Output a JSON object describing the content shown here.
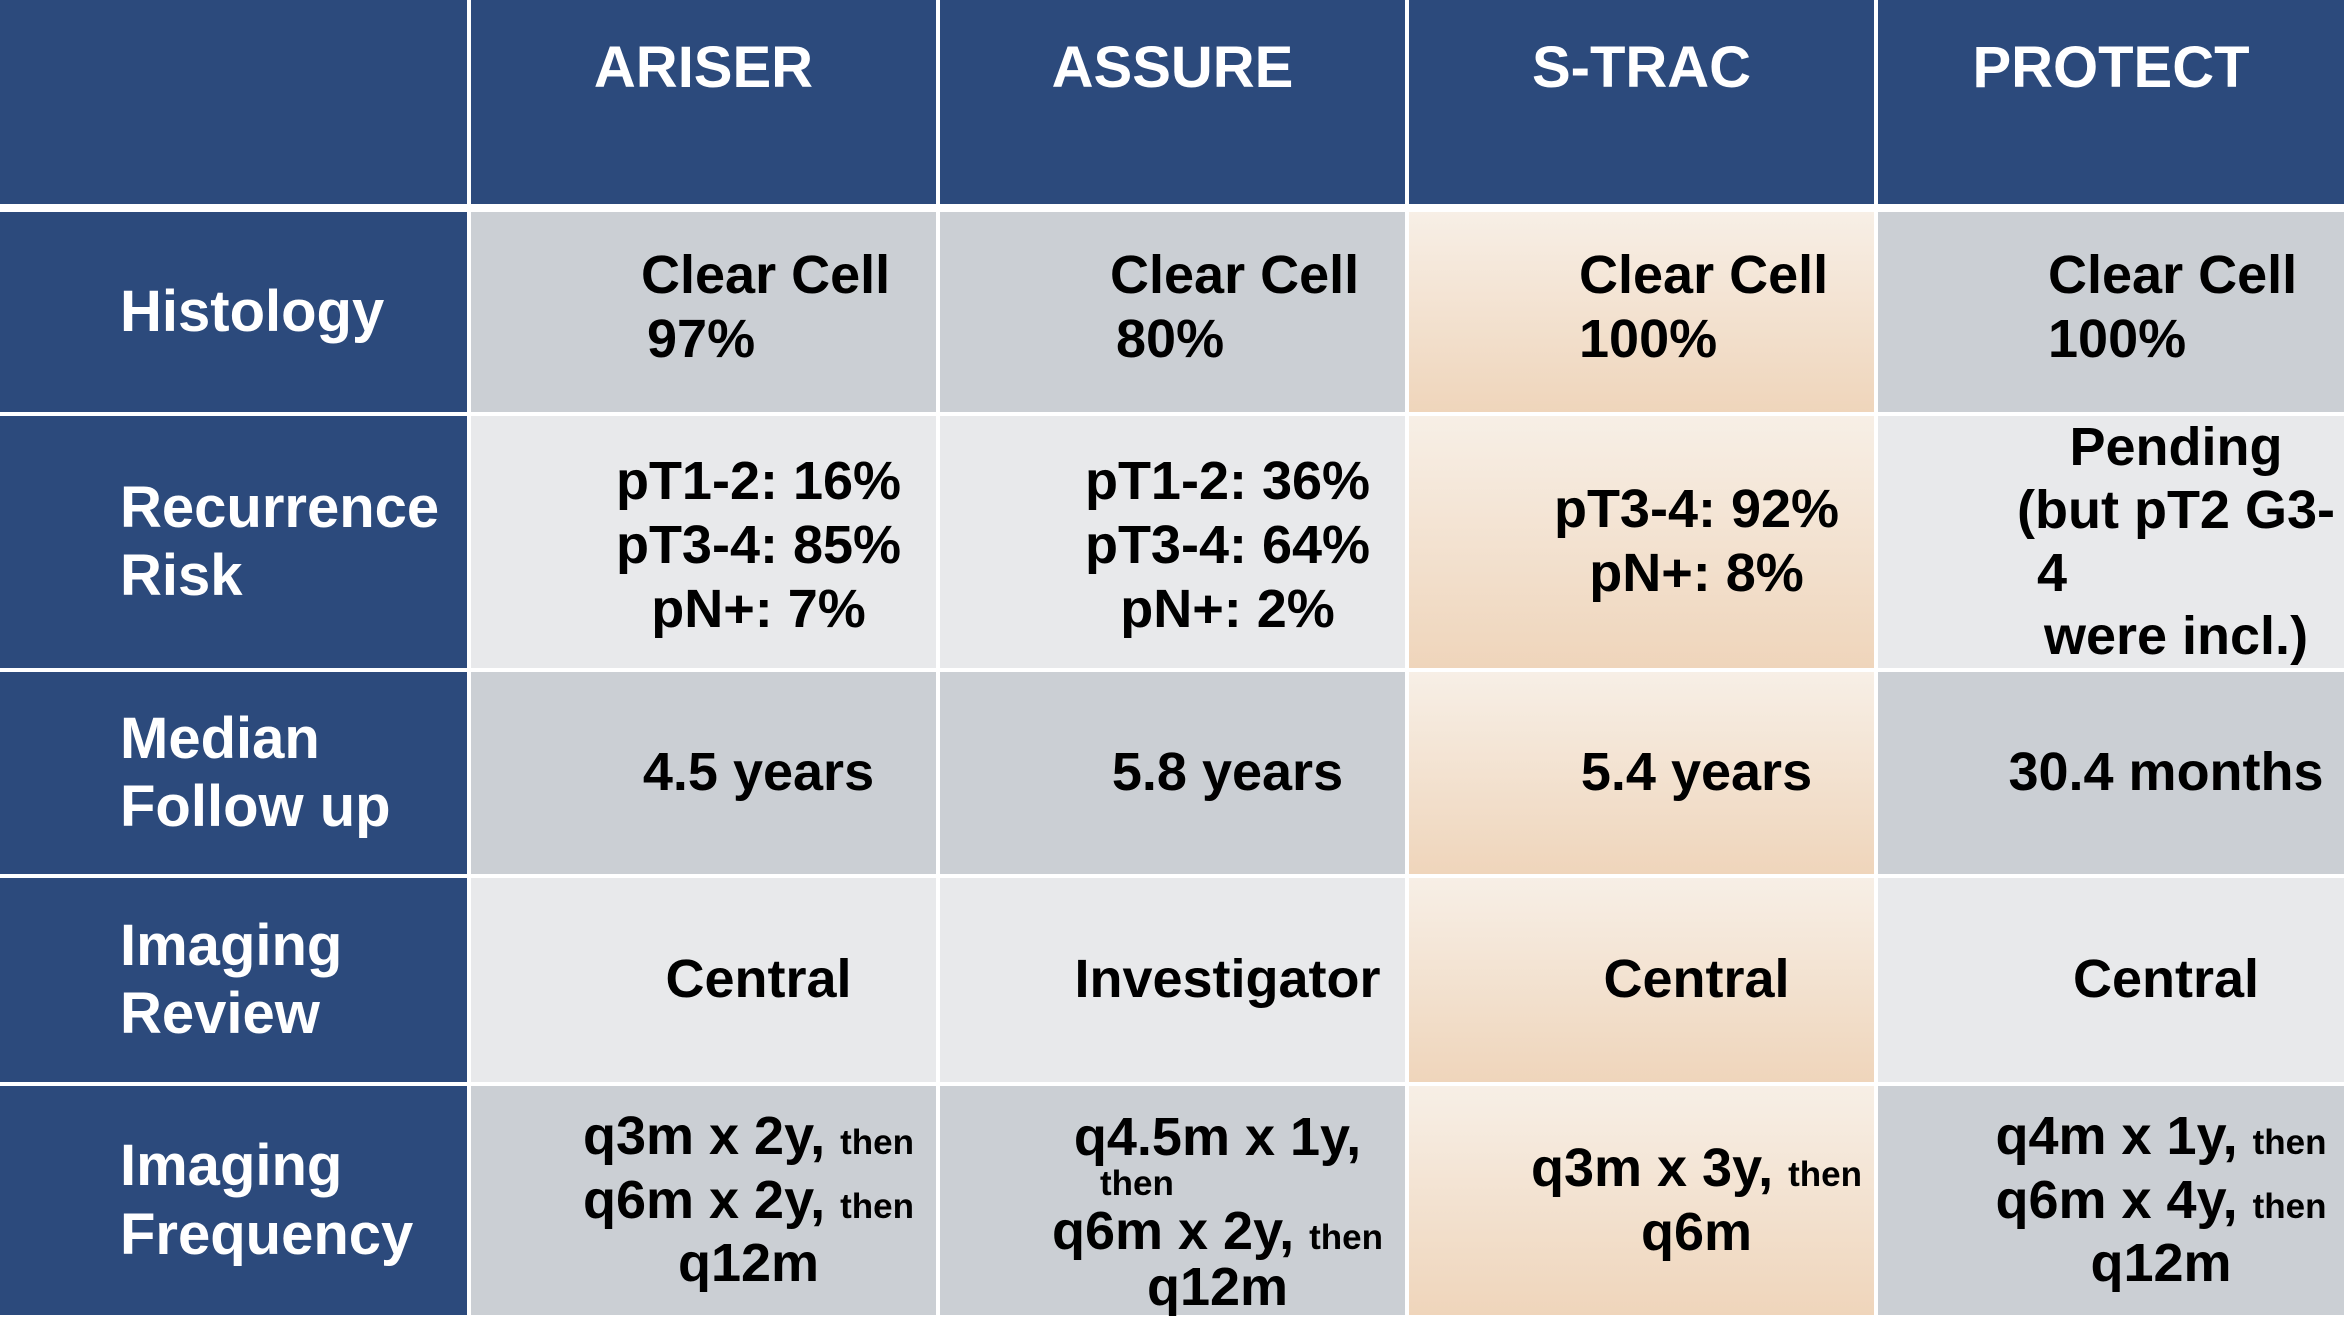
{
  "columns": [
    "",
    "ARISER",
    "ASSURE",
    "S-TRAC",
    "PROTECT"
  ],
  "rows": [
    {
      "label": [
        "Histology"
      ],
      "cells": [
        [
          "Clear Cell",
          "97%"
        ],
        [
          "Clear Cell",
          "80%"
        ],
        [
          "Clear Cell",
          "100%"
        ],
        [
          "Clear Cell",
          "100%"
        ]
      ]
    },
    {
      "label": [
        "Recurrence",
        "Risk"
      ],
      "cells": [
        [
          "pT1-2: 16%",
          "pT3-4: 85%",
          "pN+: 7%"
        ],
        [
          "pT1-2: 36%",
          "pT3-4: 64%",
          "pN+: 2%"
        ],
        [
          "pT3-4: 92%",
          "pN+: 8%"
        ],
        [
          "Pending",
          "(but pT2 G3-",
          "4",
          "were incl.)"
        ]
      ]
    },
    {
      "label": [
        "Median",
        "Follow up"
      ],
      "cells": [
        [
          "4.5 years"
        ],
        [
          "5.8 years"
        ],
        [
          "5.4 years"
        ],
        [
          "30.4 months"
        ]
      ]
    },
    {
      "label": [
        "Imaging",
        "Review"
      ],
      "cells": [
        [
          "Central"
        ],
        [
          "Investigator"
        ],
        [
          "Central"
        ],
        [
          "Central"
        ]
      ]
    },
    {
      "label": [
        "Imaging",
        "Frequency"
      ],
      "freq": [
        {
          "main": [
            "q3m x 2y,",
            "q6m x 2y,",
            "q12m"
          ],
          "then": [
            "then",
            "then"
          ]
        },
        {
          "main": [
            "q4.5m x 1y,",
            "q6m x 2y,",
            "q12m"
          ],
          "then": [
            "then",
            "then"
          ]
        },
        {
          "main": [
            "q3m x 3y,",
            "q6m"
          ],
          "then": [
            "then"
          ]
        },
        {
          "main": [
            "q4m x 1y,",
            "q6m x 4y,",
            "q12m"
          ],
          "then": [
            "then",
            "then"
          ]
        }
      ]
    }
  ],
  "colors": {
    "header_bg": "#2c4a7c",
    "cell_gray_dark": "#cbcfd4",
    "cell_gray_light": "#e8e9eb",
    "s_trac_peach": "#f3e2d0"
  }
}
